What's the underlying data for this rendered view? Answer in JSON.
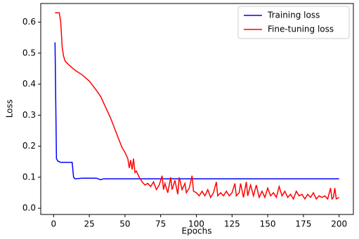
{
  "chart_data": {
    "type": "line",
    "x_label": "Epochs",
    "y_label": "Loss",
    "xlim": [
      -9,
      210
    ],
    "ylim": [
      -0.02,
      0.66
    ],
    "xticks": [
      0,
      25,
      50,
      75,
      100,
      125,
      150,
      175,
      200
    ],
    "yticks": [
      {
        "value": 0,
        "label": "0.0"
      },
      0.1,
      0.2,
      0.3,
      0.4,
      0.5,
      0.6
    ],
    "legend": "upper right",
    "series": [
      {
        "name": "Training loss",
        "color": "#0000ff",
        "x": [
          1,
          2,
          3,
          5,
          13,
          14,
          15,
          20,
          30,
          33,
          35,
          200
        ],
        "values": [
          0.535,
          0.16,
          0.152,
          0.148,
          0.148,
          0.1,
          0.095,
          0.097,
          0.097,
          0.092,
          0.095,
          0.095
        ]
      },
      {
        "name": "Fine-tuning loss",
        "color": "#ff0000",
        "x": [
          1,
          4,
          5,
          6,
          7,
          8,
          10,
          15,
          20,
          25,
          30,
          33,
          36,
          40,
          45,
          48,
          50,
          52,
          53,
          54,
          55,
          56,
          57,
          58,
          60,
          62,
          64,
          66,
          68,
          70,
          72,
          74,
          76,
          77,
          78,
          80,
          82,
          83,
          85,
          87,
          88,
          90,
          92,
          93,
          95,
          97,
          98,
          100,
          102,
          104,
          106,
          108,
          110,
          112,
          114,
          115,
          117,
          119,
          121,
          123,
          125,
          127,
          128,
          130,
          131,
          133,
          135,
          136,
          138,
          140,
          142,
          144,
          146,
          148,
          150,
          152,
          154,
          156,
          158,
          160,
          162,
          164,
          166,
          168,
          170,
          172,
          174,
          176,
          178,
          180,
          182,
          184,
          186,
          188,
          190,
          192,
          194,
          195,
          196,
          197,
          198,
          200
        ],
        "values": [
          0.63,
          0.63,
          0.6,
          0.52,
          0.49,
          0.475,
          0.465,
          0.445,
          0.43,
          0.41,
          0.38,
          0.36,
          0.33,
          0.29,
          0.23,
          0.195,
          0.18,
          0.16,
          0.13,
          0.155,
          0.125,
          0.16,
          0.115,
          0.12,
          0.1,
          0.085,
          0.075,
          0.08,
          0.07,
          0.085,
          0.06,
          0.075,
          0.105,
          0.06,
          0.08,
          0.05,
          0.1,
          0.06,
          0.09,
          0.045,
          0.1,
          0.06,
          0.08,
          0.05,
          0.065,
          0.105,
          0.055,
          0.05,
          0.04,
          0.055,
          0.04,
          0.06,
          0.035,
          0.05,
          0.085,
          0.04,
          0.05,
          0.04,
          0.055,
          0.04,
          0.05,
          0.08,
          0.04,
          0.05,
          0.08,
          0.035,
          0.085,
          0.04,
          0.075,
          0.04,
          0.075,
          0.035,
          0.055,
          0.035,
          0.065,
          0.04,
          0.05,
          0.035,
          0.07,
          0.04,
          0.055,
          0.035,
          0.045,
          0.03,
          0.055,
          0.04,
          0.045,
          0.03,
          0.045,
          0.035,
          0.05,
          0.03,
          0.04,
          0.035,
          0.04,
          0.03,
          0.065,
          0.03,
          0.035,
          0.065,
          0.03,
          0.035
        ]
      }
    ]
  }
}
